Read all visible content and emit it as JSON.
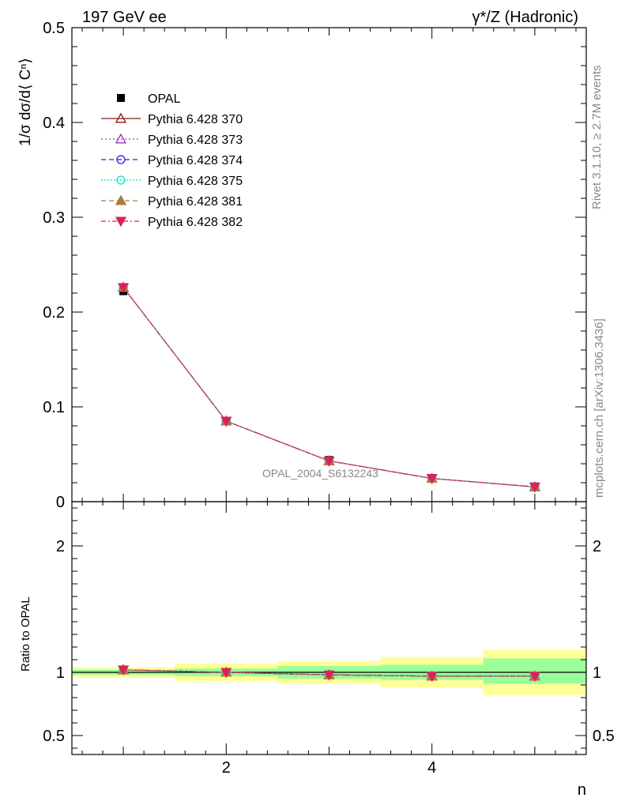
{
  "header": {
    "left_title": "197 GeV ee",
    "right_title": "γ*/Z (Hadronic)"
  },
  "side_labels": {
    "rivet": "Rivet 3.1.10, ≥ 2.7M events",
    "mcplots": "mcplots.cern.ch [arXiv:1306.3436]"
  },
  "watermark": "OPAL_2004_S6132243",
  "colors": {
    "data": "#000000",
    "band_inner": "#99ff99",
    "band_outer": "#ffff99",
    "s370": "#8b1a1a",
    "s373": "#9933cc",
    "s374": "#2222dd",
    "s375": "#11ddcc",
    "s381": "#b07840",
    "s382": "#dd2255"
  },
  "chart_data": {
    "type": "line",
    "x": [
      1,
      2,
      3,
      4,
      5
    ],
    "xlabel": "n",
    "xlim": [
      0.5,
      5.5
    ],
    "x_ticks": [
      2,
      4
    ],
    "main": {
      "ylabel": "1/σ dσ/d⟨ Cⁿ⟩",
      "ylim": [
        0,
        0.5
      ],
      "y_ticks": [
        0,
        0.1,
        0.2,
        0.3,
        0.4,
        0.5
      ],
      "y_tick_labels": [
        "0",
        "0.1",
        "0.2",
        "0.3",
        "0.4",
        "0.5"
      ],
      "data": {
        "name": "OPAL",
        "values": [
          0.222,
          0.085,
          0.044,
          0.025,
          0.016
        ],
        "errors": [
          0.003,
          0.0015,
          0.001,
          0.0008,
          0.0006
        ]
      },
      "series": [
        {
          "name": "Pythia 6.428 370",
          "key": "s370",
          "marker": "triangle-open",
          "dash": "",
          "values": [
            0.226,
            0.085,
            0.043,
            0.0245,
            0.0156
          ]
        },
        {
          "name": "Pythia 6.428 373",
          "key": "s373",
          "marker": "triangle-open",
          "dash": "2,3",
          "values": [
            0.226,
            0.085,
            0.043,
            0.0245,
            0.0156
          ]
        },
        {
          "name": "Pythia 6.428 374",
          "key": "s374",
          "marker": "circle-open",
          "dash": "6,4",
          "values": [
            0.226,
            0.085,
            0.043,
            0.0245,
            0.0156
          ]
        },
        {
          "name": "Pythia 6.428 375",
          "key": "s375",
          "marker": "circle-open",
          "dash": "2,2",
          "values": [
            0.226,
            0.085,
            0.043,
            0.0245,
            0.0156
          ]
        },
        {
          "name": "Pythia 6.428 381",
          "key": "s381",
          "marker": "triangle-filled",
          "dash": "6,4",
          "values": [
            0.226,
            0.085,
            0.043,
            0.0245,
            0.0156
          ]
        },
        {
          "name": "Pythia 6.428 382",
          "key": "s382",
          "marker": "triangle-down-filled",
          "dash": "6,3,2,3",
          "values": [
            0.226,
            0.085,
            0.043,
            0.0245,
            0.0156
          ]
        }
      ]
    },
    "ratio": {
      "ylabel": "Ratio to OPAL",
      "ylim": [
        0.35,
        2.35
      ],
      "y_ticks": [
        0.5,
        1,
        2
      ],
      "y_tick_labels": [
        "0.5",
        "1",
        "2"
      ],
      "band_inner": [
        [
          0.98,
          1.02
        ],
        [
          0.97,
          1.03
        ],
        [
          0.95,
          1.05
        ],
        [
          0.94,
          1.06
        ],
        [
          0.91,
          1.11
        ]
      ],
      "band_outer": [
        [
          0.96,
          1.04
        ],
        [
          0.93,
          1.07
        ],
        [
          0.91,
          1.09
        ],
        [
          0.88,
          1.12
        ],
        [
          0.82,
          1.18
        ]
      ],
      "values": [
        1.02,
        1.0,
        0.98,
        0.97,
        0.97
      ]
    }
  }
}
